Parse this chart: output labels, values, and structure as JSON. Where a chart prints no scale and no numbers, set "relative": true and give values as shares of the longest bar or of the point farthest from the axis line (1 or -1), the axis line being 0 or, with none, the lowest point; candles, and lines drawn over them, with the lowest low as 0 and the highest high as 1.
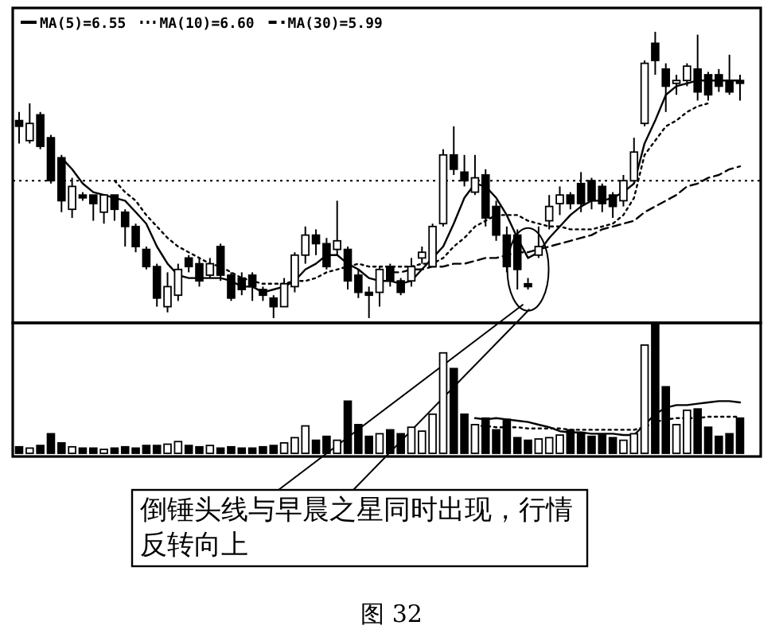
{
  "chart_data": [
    {
      "type": "candlestick",
      "relative": true,
      "legend": "top left",
      "categories": [
        null,
        null,
        null,
        null,
        null,
        null,
        null,
        null,
        null,
        null,
        null,
        null,
        null,
        null,
        null,
        null,
        null,
        null,
        null,
        null,
        null,
        null,
        null,
        null,
        null,
        null,
        null,
        null,
        null,
        null,
        null,
        null,
        null,
        null,
        null,
        null,
        null,
        null,
        null,
        null,
        null,
        null,
        null,
        null,
        null,
        null,
        null,
        null,
        null,
        null,
        null,
        null,
        null,
        null,
        null,
        null,
        null,
        null,
        null,
        null,
        null,
        null,
        null,
        null,
        null,
        null,
        null,
        null,
        null
      ],
      "ohlc": [
        [
          0.69,
          0.72,
          0.61,
          0.67
        ],
        [
          0.62,
          0.75,
          0.61,
          0.68
        ],
        [
          0.71,
          0.72,
          0.59,
          0.6
        ],
        [
          0.63,
          0.64,
          0.47,
          0.48
        ],
        [
          0.56,
          0.57,
          0.37,
          0.41
        ],
        [
          0.38,
          0.49,
          0.35,
          0.46
        ],
        [
          0.43,
          0.44,
          0.41,
          0.42
        ],
        [
          0.43,
          0.43,
          0.34,
          0.4
        ],
        [
          0.37,
          0.43,
          0.33,
          0.43
        ],
        [
          0.43,
          0.43,
          0.34,
          0.38
        ],
        [
          0.37,
          0.38,
          0.25,
          0.32
        ],
        [
          0.32,
          0.33,
          0.23,
          0.25
        ],
        [
          0.24,
          0.25,
          0.17,
          0.18
        ],
        [
          0.18,
          0.19,
          0.04,
          0.07
        ],
        [
          0.04,
          0.16,
          0.02,
          0.11
        ],
        [
          0.08,
          0.19,
          0.06,
          0.17
        ],
        [
          0.21,
          0.22,
          0.16,
          0.18
        ],
        [
          0.19,
          0.21,
          0.11,
          0.13
        ],
        [
          0.15,
          0.21,
          0.14,
          0.19
        ],
        [
          0.25,
          0.26,
          0.13,
          0.15
        ],
        [
          0.15,
          0.16,
          0.06,
          0.07
        ],
        [
          0.14,
          0.16,
          0.08,
          0.1
        ],
        [
          0.15,
          0.16,
          0.06,
          0.11
        ],
        [
          0.1,
          0.11,
          0.06,
          0.08
        ],
        [
          0.07,
          0.08,
          0,
          0.04
        ],
        [
          0.04,
          0.14,
          0.04,
          0.12
        ],
        [
          0.11,
          0.23,
          0.09,
          0.22
        ],
        [
          0.22,
          0.32,
          0.19,
          0.29
        ],
        [
          0.29,
          0.31,
          0.22,
          0.26
        ],
        [
          0.26,
          0.28,
          0.17,
          0.18
        ],
        [
          0.24,
          0.41,
          0.22,
          0.27
        ],
        [
          0.24,
          0.25,
          0.1,
          0.13
        ],
        [
          0.15,
          0.17,
          0.07,
          0.09
        ],
        [
          0.09,
          0.11,
          0,
          0.08
        ],
        [
          0.09,
          0.18,
          0.04,
          0.17
        ],
        [
          0.18,
          0.19,
          0.11,
          0.13
        ],
        [
          0.13,
          0.14,
          0.08,
          0.09
        ],
        [
          0.13,
          0.21,
          0.11,
          0.18
        ],
        [
          0.21,
          0.25,
          0.19,
          0.23
        ],
        [
          0.18,
          0.33,
          0.18,
          0.32
        ],
        [
          0.33,
          0.59,
          0.32,
          0.57
        ],
        [
          0.57,
          0.67,
          0.5,
          0.52
        ],
        [
          0.51,
          0.57,
          0.46,
          0.48
        ],
        [
          0.44,
          0.57,
          0.43,
          0.49
        ],
        [
          0.5,
          0.52,
          0.32,
          0.35
        ],
        [
          0.39,
          0.41,
          0.27,
          0.29
        ],
        [
          0.29,
          0.32,
          0.16,
          0.18
        ],
        [
          0.29,
          0.31,
          0.1,
          0.17
        ],
        [
          0.12,
          0.14,
          0.1,
          0.11
        ],
        [
          0.22,
          0.32,
          0.21,
          0.25
        ],
        [
          0.34,
          0.43,
          0.31,
          0.39
        ],
        [
          0.4,
          0.46,
          0.36,
          0.43
        ],
        [
          0.43,
          0.44,
          0.38,
          0.4
        ],
        [
          0.47,
          0.51,
          0.37,
          0.4
        ],
        [
          0.48,
          0.49,
          0.38,
          0.41
        ],
        [
          0.46,
          0.47,
          0.37,
          0.4
        ],
        [
          0.43,
          0.44,
          0.35,
          0.39
        ],
        [
          0.41,
          0.5,
          0.39,
          0.48
        ],
        [
          0.48,
          0.63,
          0.47,
          0.58
        ],
        [
          0.68,
          0.9,
          0.67,
          0.89
        ],
        [
          0.96,
          1.0,
          0.85,
          0.9
        ],
        [
          0.87,
          0.89,
          0.72,
          0.81
        ],
        [
          0.82,
          0.85,
          0.78,
          0.83
        ],
        [
          0.83,
          0.89,
          0.81,
          0.88
        ],
        [
          0.87,
          0.99,
          0.76,
          0.79
        ],
        [
          0.85,
          0.86,
          0.76,
          0.78
        ],
        [
          0.85,
          0.87,
          0.79,
          0.81
        ],
        [
          0.83,
          0.92,
          0.78,
          0.79
        ],
        [
          0.83,
          0.85,
          0.76,
          0.82
        ]
      ],
      "series": [
        {
          "name": "MA(5)=6.55",
          "type": "line",
          "line_style": "solid",
          "color": "#000000",
          "values": [
            null,
            null,
            null,
            null,
            0.56,
            0.52,
            0.47,
            0.44,
            0.43,
            0.42,
            0.41,
            0.37,
            0.33,
            0.25,
            0.19,
            0.15,
            0.14,
            0.14,
            0.14,
            0.14,
            0.13,
            0.11,
            0.11,
            0.09,
            0.1,
            0.11,
            0.13,
            0.17,
            0.19,
            0.22,
            0.22,
            0.19,
            0.17,
            0.14,
            0.13,
            0.13,
            0.12,
            0.13,
            0.17,
            0.21,
            0.25,
            0.33,
            0.42,
            0.47,
            0.46,
            0.42,
            0.36,
            0.28,
            0.21,
            0.23,
            0.28,
            0.32,
            0.36,
            0.39,
            0.41,
            0.41,
            0.42,
            0.44,
            0.47,
            0.61,
            0.69,
            0.78,
            0.81,
            0.82,
            0.83,
            0.83,
            0.83,
            0.83,
            0.83
          ]
        },
        {
          "name": "MA(10)=6.60",
          "type": "line",
          "line_style": "dotted",
          "color": "#000000",
          "values": [
            null,
            null,
            null,
            null,
            null,
            null,
            null,
            null,
            null,
            0.48,
            0.44,
            0.41,
            0.36,
            0.32,
            0.28,
            0.25,
            0.23,
            0.21,
            0.19,
            0.18,
            0.16,
            0.14,
            0.13,
            0.12,
            0.12,
            0.12,
            0.13,
            0.13,
            0.14,
            0.16,
            0.17,
            0.18,
            0.19,
            0.18,
            0.18,
            0.18,
            0.18,
            0.18,
            0.19,
            0.19,
            0.21,
            0.25,
            0.28,
            0.32,
            0.34,
            0.36,
            0.36,
            0.36,
            0.34,
            0.33,
            0.32,
            0.32,
            0.31,
            0.31,
            0.31,
            0.32,
            0.33,
            0.36,
            0.42,
            0.57,
            0.62,
            0.67,
            0.69,
            0.72,
            0.74,
            0.75,
            null,
            null,
            null
          ]
        },
        {
          "name": "MA(30)=5.99",
          "type": "line",
          "line_style": "dashed",
          "color": "#000000",
          "values": [
            null,
            null,
            null,
            null,
            null,
            null,
            null,
            null,
            null,
            null,
            null,
            null,
            null,
            null,
            null,
            null,
            null,
            null,
            null,
            null,
            null,
            null,
            null,
            null,
            null,
            null,
            null,
            null,
            null,
            null,
            null,
            null,
            null,
            null,
            null,
            0.16,
            0.16,
            0.17,
            0.17,
            0.18,
            0.18,
            0.19,
            0.19,
            0.2,
            0.21,
            0.21,
            0.22,
            0.23,
            0.23,
            0.24,
            0.25,
            0.26,
            0.27,
            0.28,
            0.29,
            0.31,
            0.32,
            0.33,
            0.34,
            0.37,
            0.39,
            0.41,
            0.43,
            0.46,
            0.47,
            0.49,
            0.5,
            0.52,
            0.53
          ]
        }
      ],
      "ref_lines": [
        {
          "axis": "y",
          "value": 0.48,
          "line_style": "dotted",
          "color": "#000000"
        }
      ],
      "annotations": [
        "倒锤头线与早晨之星同时出现，行情反转向上",
        "图 32"
      ]
    },
    {
      "type": "bar",
      "relative": true,
      "categories": [
        null,
        null,
        null,
        null,
        null,
        null,
        null,
        null,
        null,
        null,
        null,
        null,
        null,
        null,
        null,
        null,
        null,
        null,
        null,
        null,
        null,
        null,
        null,
        null,
        null,
        null,
        null,
        null,
        null,
        null,
        null,
        null,
        null,
        null,
        null,
        null,
        null,
        null,
        null,
        null,
        null,
        null,
        null,
        null,
        null,
        null,
        null,
        null,
        null,
        null,
        null,
        null,
        null,
        null,
        null,
        null,
        null,
        null,
        null,
        null,
        null,
        null,
        null,
        null,
        null,
        null,
        null,
        null,
        null
      ],
      "values": [
        0.05,
        0.04,
        0.06,
        0.15,
        0.08,
        0.05,
        0.04,
        0.04,
        0.03,
        0.04,
        0.05,
        0.04,
        0.06,
        0.06,
        0.07,
        0.09,
        0.06,
        0.05,
        0.06,
        0.04,
        0.05,
        0.04,
        0.04,
        0.05,
        0.06,
        0.08,
        0.12,
        0.21,
        0.1,
        0.13,
        0.1,
        0.4,
        0.22,
        0.13,
        0.15,
        0.18,
        0.15,
        0.2,
        0.17,
        0.3,
        0.77,
        0.65,
        0.3,
        0.22,
        0.27,
        0.18,
        0.26,
        0.12,
        0.1,
        0.11,
        0.12,
        0.14,
        0.18,
        0.16,
        0.13,
        0.14,
        0.12,
        0.1,
        0.15,
        0.83,
        1.0,
        0.51,
        0.22,
        0.33,
        0.34,
        0.2,
        0.13,
        0.15,
        0.27
      ],
      "colors": [
        "#000000",
        "#ffffff",
        "#000000",
        "#000000",
        "#000000",
        "#ffffff",
        "#000000",
        "#000000",
        "#ffffff",
        "#000000",
        "#000000",
        "#000000",
        "#000000",
        "#000000",
        "#ffffff",
        "#ffffff",
        "#000000",
        "#000000",
        "#ffffff",
        "#000000",
        "#000000",
        "#000000",
        "#000000",
        "#000000",
        "#000000",
        "#ffffff",
        "#ffffff",
        "#ffffff",
        "#000000",
        "#000000",
        "#ffffff",
        "#000000",
        "#000000",
        "#000000",
        "#ffffff",
        "#000000",
        "#000000",
        "#ffffff",
        "#ffffff",
        "#ffffff",
        "#ffffff",
        "#000000",
        "#000000",
        "#ffffff",
        "#000000",
        "#000000",
        "#000000",
        "#000000",
        "#000000",
        "#ffffff",
        "#ffffff",
        "#ffffff",
        "#000000",
        "#000000",
        "#000000",
        "#000000",
        "#000000",
        "#ffffff",
        "#ffffff",
        "#ffffff",
        "#000000",
        "#000000",
        "#ffffff",
        "#ffffff",
        "#000000",
        "#000000",
        "#000000",
        "#000000",
        "#000000"
      ],
      "series": [
        {
          "type": "line",
          "line_style": "solid",
          "color": "#000000",
          "values": [
            null,
            null,
            null,
            null,
            null,
            null,
            null,
            null,
            null,
            null,
            null,
            null,
            null,
            null,
            null,
            null,
            null,
            null,
            null,
            null,
            null,
            null,
            null,
            null,
            null,
            null,
            null,
            null,
            null,
            null,
            null,
            null,
            null,
            null,
            null,
            null,
            null,
            null,
            null,
            null,
            null,
            null,
            null,
            0.27,
            0.26,
            0.27,
            0.26,
            0.25,
            0.24,
            0.22,
            0.2,
            0.17,
            0.16,
            0.16,
            0.15,
            0.15,
            0.15,
            0.14,
            0.14,
            0.22,
            0.3,
            0.35,
            0.37,
            0.37,
            0.38,
            0.39,
            0.4,
            0.4,
            0.39
          ]
        },
        {
          "type": "line",
          "line_style": "dotted",
          "color": "#000000",
          "values": [
            null,
            null,
            null,
            null,
            null,
            null,
            null,
            null,
            null,
            null,
            null,
            null,
            null,
            null,
            null,
            null,
            null,
            null,
            null,
            null,
            null,
            null,
            null,
            null,
            null,
            null,
            null,
            null,
            null,
            null,
            null,
            null,
            null,
            null,
            null,
            null,
            null,
            null,
            null,
            null,
            null,
            null,
            null,
            0.21,
            0.21,
            0.2,
            0.2,
            0.2,
            0.19,
            0.19,
            0.19,
            0.19,
            0.18,
            0.18,
            0.18,
            0.18,
            0.18,
            0.18,
            0.18,
            0.2,
            0.24,
            0.26,
            0.27,
            0.27,
            0.27,
            0.28,
            0.28,
            0.28,
            0.28
          ]
        }
      ]
    }
  ]
}
